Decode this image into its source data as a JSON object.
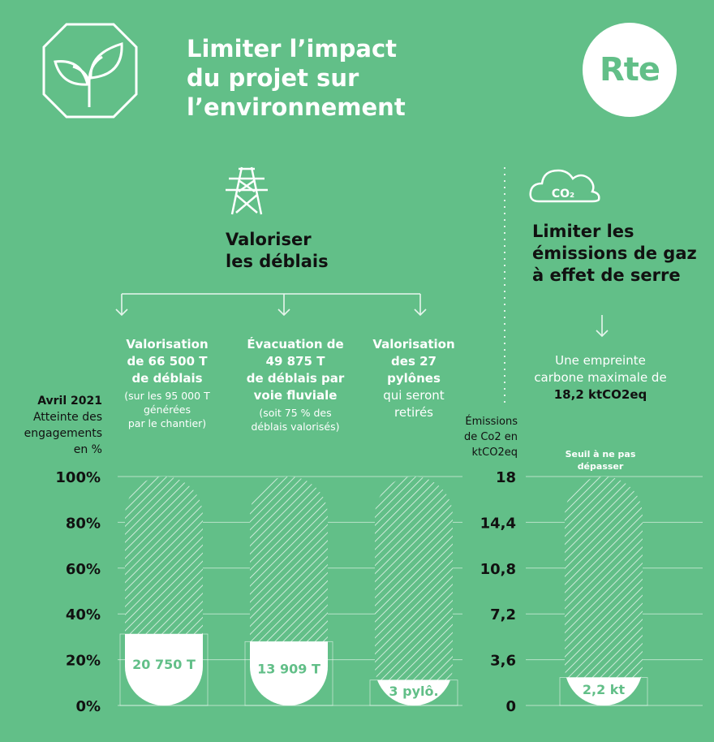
{
  "header": {
    "title_lines": [
      "Limiter l’impact",
      "du projet sur",
      "l’environnement"
    ],
    "logo_text": "Rte",
    "leaf_icon": "plant-leaf-icon"
  },
  "left_section": {
    "icon": "power-pylon-icon",
    "heading_lines": [
      "Valoriser",
      "les déblais"
    ],
    "columns": [
      {
        "heading_lines": [
          "Valorisation",
          "de 66 500 T",
          "de déblais"
        ],
        "sub_lines": [
          "(sur les 95 000 T",
          "générées",
          "par le chantier)"
        ],
        "value_label": "20 750 T"
      },
      {
        "heading_lines": [
          "Évacuation de",
          "49 875 T",
          "de déblais par",
          "voie fluviale"
        ],
        "sub_lines": [
          "(soit 75 % des",
          "déblais valorisés)"
        ],
        "value_label": "13 909 T"
      },
      {
        "heading_lines": [
          "Valorisation",
          "des 27",
          "pylônes"
        ],
        "plain_lines": [
          "qui seront",
          "retirés"
        ],
        "value_label": "3 pylô."
      }
    ]
  },
  "right_section": {
    "icon": "co2-cloud-icon",
    "icon_text": "CO₂",
    "heading_lines": [
      "Limiter les",
      "émissions de gaz",
      "à effet de serre"
    ],
    "desc_lines": [
      "Une empreinte",
      "carbone maximale de"
    ],
    "desc_bold": "18,2 ktCO2eq",
    "threshold_lines": [
      "Seuil à ne pas",
      "dépasser"
    ],
    "value_label": "2,2 kt"
  },
  "chart_data": [
    {
      "type": "bar",
      "ylabel_lines": [
        "Avril 2021",
        "Atteinte des",
        "engagements",
        "en %"
      ],
      "ticks": [
        "100%",
        "80%",
        "60%",
        "40%",
        "20%",
        "0%"
      ],
      "ylim": [
        0,
        100
      ],
      "categories": [
        "Valorisation de 66 500 T de déblais",
        "Évacuation de 49 875 T de déblais par voie fluviale",
        "Valorisation des 27 pylônes"
      ],
      "values": [
        31.2,
        27.9,
        11.1
      ],
      "data_labels": [
        "20 750 T",
        "13 909 T",
        "3 pylô."
      ],
      "fill_color": "#ffffff",
      "target_pattern": "hatched"
    },
    {
      "type": "bar",
      "ylabel_lines": [
        "Émissions",
        "de Co2 en",
        "ktCO2eq"
      ],
      "ticks": [
        "18",
        "14,4",
        "10,8",
        "7,2",
        "3,6",
        "0"
      ],
      "ylim": [
        0,
        18
      ],
      "categories": [
        "Empreinte carbone"
      ],
      "values": [
        2.2
      ],
      "data_labels": [
        "2,2 kt"
      ],
      "threshold": 18.2,
      "fill_color": "#ffffff",
      "target_pattern": "hatched"
    }
  ]
}
